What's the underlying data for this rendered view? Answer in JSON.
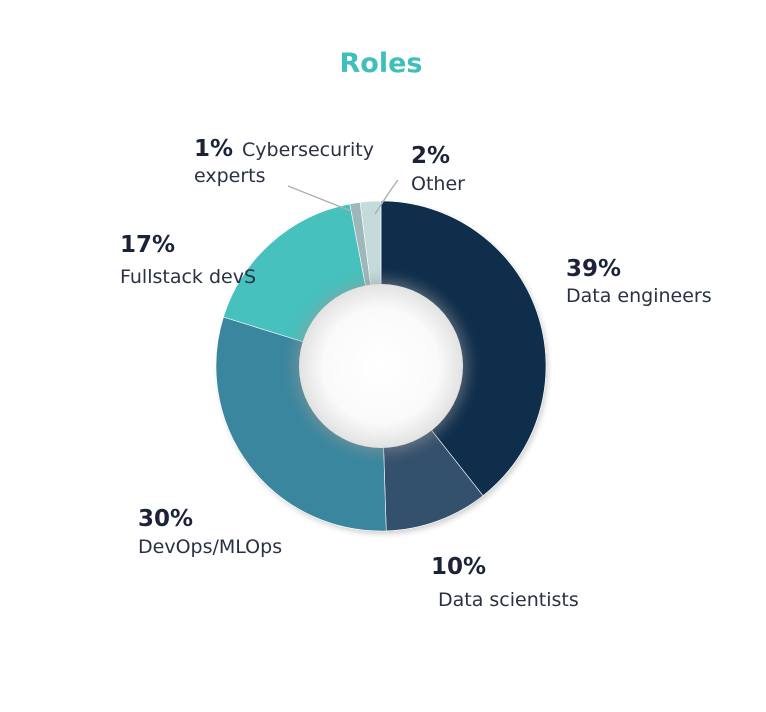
{
  "chart_data": {
    "type": "pie",
    "variant": "donut",
    "title": "Roles",
    "title_color": "#3fbfbb",
    "slices": [
      {
        "label": "Data engineers",
        "value": 39,
        "value_label": "39%",
        "color": "#0f2e4c"
      },
      {
        "label": "Data scientists",
        "value": 10,
        "value_label": "10%",
        "color": "#33506c"
      },
      {
        "label": "DevOps/MLOps",
        "value": 30,
        "value_label": "30%",
        "color": "#3a869e"
      },
      {
        "label": "Fullstack devS",
        "value": 17,
        "value_label": "17%",
        "color": "#46c1bd"
      },
      {
        "label": "Cybersecurity experts",
        "label_lines": [
          "Cybersecurity",
          "experts"
        ],
        "value": 1,
        "value_label": "1%",
        "color": "#9db7bb"
      },
      {
        "label": "Other",
        "value": 2,
        "value_label": "2%",
        "color": "#c4dadb"
      }
    ],
    "legend": "none",
    "labels": "outside"
  }
}
